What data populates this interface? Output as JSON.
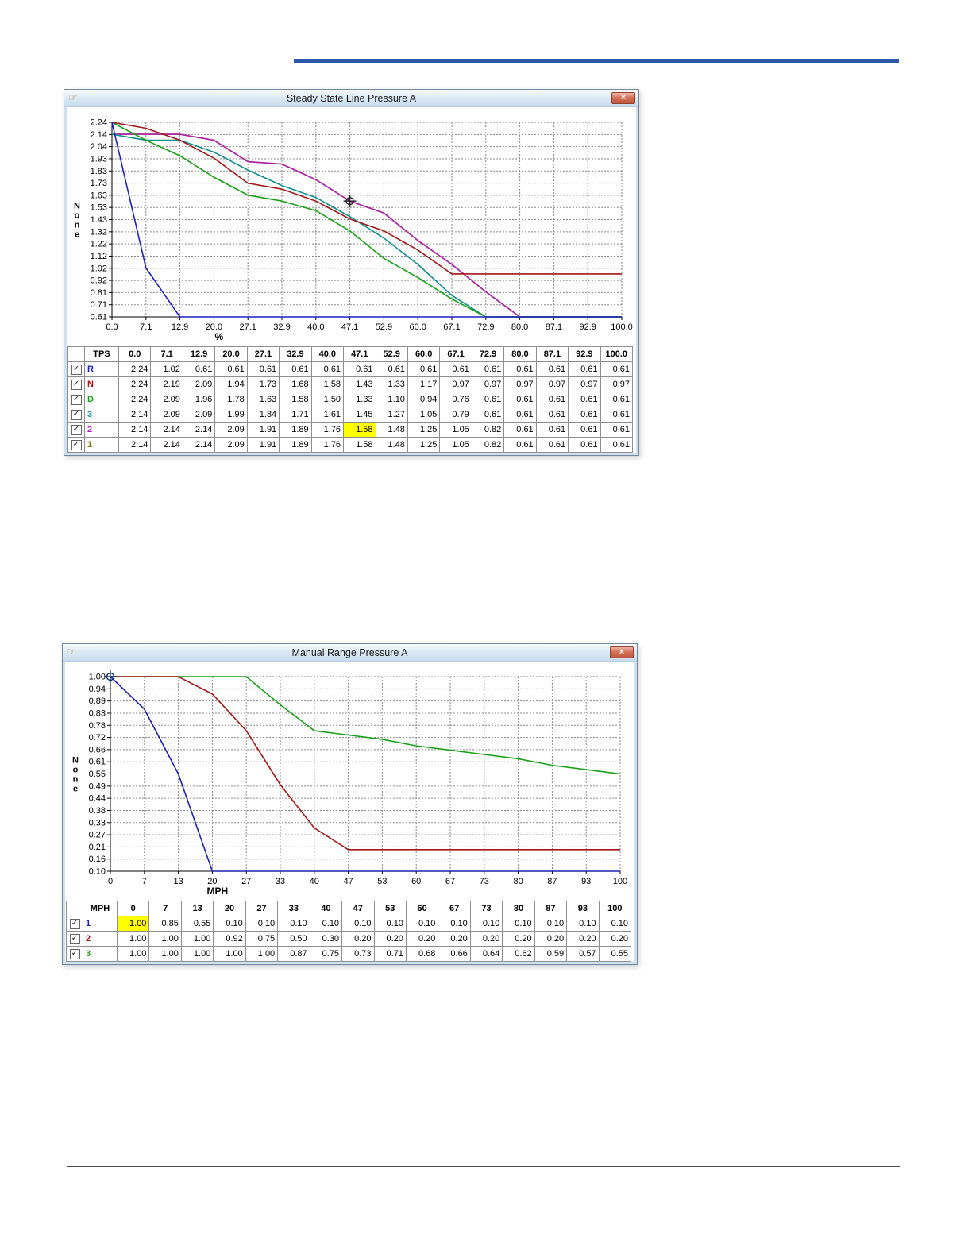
{
  "page": {
    "top_rule_color": "#2b58a8",
    "bottom_rule_color": "#4a4a4a"
  },
  "windows": [
    {
      "title": "Steady State Line Pressure A",
      "icon_glyph": "☞",
      "close_glyph": "×",
      "chart": {
        "type": "line",
        "title": "Steady State Line Pressure A",
        "ylabel": "None",
        "xlabel": "%",
        "grid": true,
        "ylim": [
          0.61,
          2.24
        ],
        "y_tick_labels": [
          "2.24",
          "2.14",
          "2.04",
          "1.93",
          "1.83",
          "1.73",
          "1.63",
          "1.53",
          "1.43",
          "1.32",
          "1.22",
          "1.12",
          "1.02",
          "0.92",
          "0.81",
          "0.71",
          "0.61"
        ],
        "x_tick_labels": [
          "0.0",
          "7.1",
          "12.9",
          "20.0",
          "27.1",
          "32.9",
          "40.0",
          "47.1",
          "52.9",
          "60.0",
          "67.1",
          "72.9",
          "80.0",
          "87.1",
          "92.9",
          "100.0"
        ],
        "series": [
          {
            "name": "R",
            "color": "#2020c0",
            "values": [
              2.24,
              1.02,
              0.61,
              0.61,
              0.61,
              0.61,
              0.61,
              0.61,
              0.61,
              0.61,
              0.61,
              0.61,
              0.61,
              0.61,
              0.61,
              0.61
            ]
          },
          {
            "name": "N",
            "color": "#a01818",
            "values": [
              2.24,
              2.19,
              2.09,
              1.94,
              1.73,
              1.68,
              1.58,
              1.43,
              1.33,
              1.17,
              0.97,
              0.97,
              0.97,
              0.97,
              0.97,
              0.97
            ]
          },
          {
            "name": "D",
            "color": "#18a018",
            "values": [
              2.24,
              2.09,
              1.96,
              1.78,
              1.63,
              1.58,
              1.5,
              1.33,
              1.1,
              0.94,
              0.76,
              0.61,
              0.61,
              0.61,
              0.61,
              0.61
            ]
          },
          {
            "name": "3",
            "color": "#109090",
            "values": [
              2.14,
              2.09,
              2.09,
              1.99,
              1.84,
              1.71,
              1.61,
              1.45,
              1.27,
              1.05,
              0.79,
              0.61,
              0.61,
              0.61,
              0.61,
              0.61
            ]
          },
          {
            "name": "2",
            "color": "#b020b0",
            "values": [
              2.14,
              2.14,
              2.14,
              2.09,
              1.91,
              1.89,
              1.76,
              1.58,
              1.48,
              1.25,
              1.05,
              0.82,
              0.61,
              0.61,
              0.61,
              0.61
            ]
          },
          {
            "name": "1",
            "color": "#808000",
            "values": [
              2.14,
              2.14,
              2.14,
              2.09,
              1.91,
              1.89,
              1.76,
              1.58,
              1.48,
              1.25,
              1.05,
              0.82,
              0.61,
              0.61,
              0.61,
              0.61
            ]
          }
        ],
        "cursor": {
          "x_index": 7,
          "y_value": 1.58,
          "color": "#202020"
        }
      },
      "table": {
        "header": [
          "TPS",
          "0.0",
          "7.1",
          "12.9",
          "20.0",
          "27.1",
          "32.9",
          "40.0",
          "47.1",
          "52.9",
          "60.0",
          "67.1",
          "72.9",
          "80.0",
          "87.1",
          "92.9",
          "100.0"
        ],
        "highlight_color": "#ffff00",
        "rows": [
          {
            "label": "R",
            "color": "#2020c0",
            "checked": true,
            "highlight_index": null,
            "values": [
              2.24,
              1.02,
              0.61,
              0.61,
              0.61,
              0.61,
              0.61,
              0.61,
              0.61,
              0.61,
              0.61,
              0.61,
              0.61,
              0.61,
              0.61,
              0.61
            ]
          },
          {
            "label": "N",
            "color": "#a01818",
            "checked": true,
            "highlight_index": null,
            "values": [
              2.24,
              2.19,
              2.09,
              1.94,
              1.73,
              1.68,
              1.58,
              1.43,
              1.33,
              1.17,
              0.97,
              0.97,
              0.97,
              0.97,
              0.97,
              0.97
            ]
          },
          {
            "label": "D",
            "color": "#18a018",
            "checked": true,
            "highlight_index": null,
            "values": [
              2.24,
              2.09,
              1.96,
              1.78,
              1.63,
              1.58,
              1.5,
              1.33,
              1.1,
              0.94,
              0.76,
              0.61,
              0.61,
              0.61,
              0.61,
              0.61
            ]
          },
          {
            "label": "3",
            "color": "#109090",
            "checked": true,
            "highlight_index": null,
            "values": [
              2.14,
              2.09,
              2.09,
              1.99,
              1.84,
              1.71,
              1.61,
              1.45,
              1.27,
              1.05,
              0.79,
              0.61,
              0.61,
              0.61,
              0.61,
              0.61
            ]
          },
          {
            "label": "2",
            "color": "#b020b0",
            "checked": true,
            "highlight_index": 7,
            "values": [
              2.14,
              2.14,
              2.14,
              2.09,
              1.91,
              1.89,
              1.76,
              1.58,
              1.48,
              1.25,
              1.05,
              0.82,
              0.61,
              0.61,
              0.61,
              0.61
            ]
          },
          {
            "label": "1",
            "color": "#808000",
            "checked": true,
            "highlight_index": null,
            "values": [
              2.14,
              2.14,
              2.14,
              2.09,
              1.91,
              1.89,
              1.76,
              1.58,
              1.48,
              1.25,
              1.05,
              0.82,
              0.61,
              0.61,
              0.61,
              0.61
            ]
          }
        ]
      }
    },
    {
      "title": "Manual Range Pressure A",
      "icon_glyph": "☞",
      "close_glyph": "×",
      "chart": {
        "type": "line",
        "title": "Manual Range Pressure A",
        "ylabel": "None",
        "xlabel": "MPH",
        "grid": true,
        "ylim": [
          0.1,
          1.0
        ],
        "y_tick_labels": [
          "1.00",
          "0.94",
          "0.89",
          "0.83",
          "0.78",
          "0.72",
          "0.66",
          "0.61",
          "0.55",
          "0.49",
          "0.44",
          "0.38",
          "0.33",
          "0.27",
          "0.21",
          "0.16",
          "0.10"
        ],
        "x_tick_labels": [
          "0",
          "7",
          "13",
          "20",
          "27",
          "33",
          "40",
          "47",
          "53",
          "60",
          "67",
          "73",
          "80",
          "87",
          "93",
          "100"
        ],
        "series": [
          {
            "name": "1",
            "color": "#2020b0",
            "values": [
              1.0,
              0.85,
              0.55,
              0.1,
              0.1,
              0.1,
              0.1,
              0.1,
              0.1,
              0.1,
              0.1,
              0.1,
              0.1,
              0.1,
              0.1,
              0.1
            ]
          },
          {
            "name": "2",
            "color": "#a01818",
            "values": [
              1.0,
              1.0,
              1.0,
              0.92,
              0.75,
              0.5,
              0.3,
              0.2,
              0.2,
              0.2,
              0.2,
              0.2,
              0.2,
              0.2,
              0.2,
              0.2
            ]
          },
          {
            "name": "3",
            "color": "#18a018",
            "values": [
              1.0,
              1.0,
              1.0,
              1.0,
              1.0,
              0.87,
              0.75,
              0.73,
              0.71,
              0.68,
              0.66,
              0.64,
              0.62,
              0.59,
              0.57,
              0.55
            ]
          }
        ],
        "cursor": {
          "x_index": 0,
          "y_value": 1.0,
          "color": "#103070"
        }
      },
      "table": {
        "header": [
          "MPH",
          "0",
          "7",
          "13",
          "20",
          "27",
          "33",
          "40",
          "47",
          "53",
          "60",
          "67",
          "73",
          "80",
          "87",
          "93",
          "100"
        ],
        "highlight_color": "#ffff00",
        "rows": [
          {
            "label": "1",
            "color": "#2020b0",
            "checked": true,
            "highlight_index": 0,
            "values": [
              1.0,
              0.85,
              0.55,
              0.1,
              0.1,
              0.1,
              0.1,
              0.1,
              0.1,
              0.1,
              0.1,
              0.1,
              0.1,
              0.1,
              0.1,
              0.1
            ]
          },
          {
            "label": "2",
            "color": "#a01818",
            "checked": true,
            "highlight_index": null,
            "values": [
              1.0,
              1.0,
              1.0,
              0.92,
              0.75,
              0.5,
              0.3,
              0.2,
              0.2,
              0.2,
              0.2,
              0.2,
              0.2,
              0.2,
              0.2,
              0.2
            ]
          },
          {
            "label": "3",
            "color": "#18a018",
            "checked": true,
            "highlight_index": null,
            "values": [
              1.0,
              1.0,
              1.0,
              1.0,
              1.0,
              0.87,
              0.75,
              0.73,
              0.71,
              0.68,
              0.66,
              0.64,
              0.62,
              0.59,
              0.57,
              0.55
            ]
          }
        ]
      }
    }
  ]
}
